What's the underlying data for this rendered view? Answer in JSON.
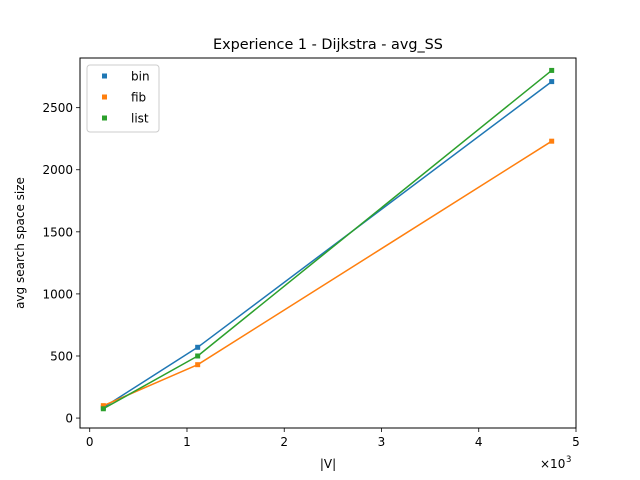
{
  "chart_data": {
    "type": "line",
    "title": "Experience 1 - Dijkstra - avg_SS",
    "xlabel": "|V|",
    "ylabel": "avg search space size",
    "x_offset_label": {
      "base": "×10",
      "exponent": "3"
    },
    "xlim": [
      -0.1,
      5.0
    ],
    "ylim": [
      -80,
      2900
    ],
    "xticks": [
      0,
      1,
      2,
      3,
      4,
      5
    ],
    "xtick_labels": [
      "0",
      "1",
      "2",
      "3",
      "4",
      "5"
    ],
    "yticks": [
      0,
      500,
      1000,
      1500,
      2000,
      2500
    ],
    "ytick_labels": [
      "0",
      "500",
      "1000",
      "1500",
      "2000",
      "2500"
    ],
    "grid": false,
    "legend_position": "top-left",
    "x": [
      0.14,
      1.11,
      4.75
    ],
    "series": [
      {
        "name": "bin",
        "color": "#1f77b4",
        "values": [
          85,
          570,
          2710
        ]
      },
      {
        "name": "fib",
        "color": "#ff7f0e",
        "values": [
          100,
          430,
          2230
        ]
      },
      {
        "name": "list",
        "color": "#2ca02c",
        "values": [
          75,
          500,
          2800
        ]
      }
    ]
  }
}
